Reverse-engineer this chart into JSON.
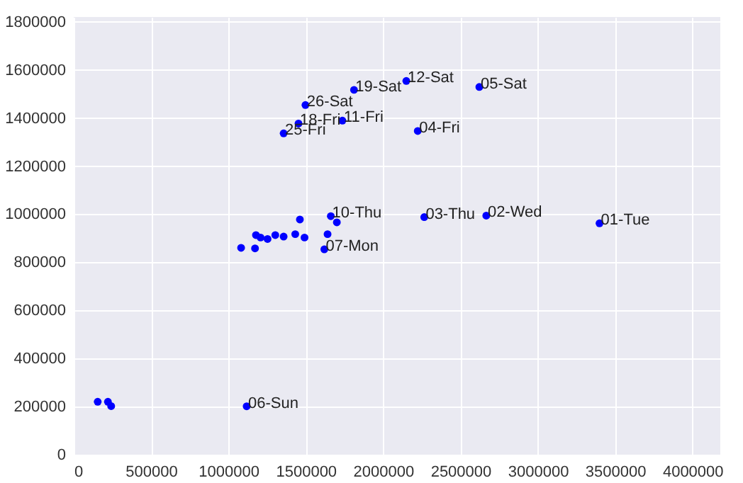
{
  "chart_data": {
    "type": "scatter",
    "marker": "circle",
    "grid": true,
    "xlim": [
      0,
      4180000
    ],
    "ylim": [
      0,
      1820000
    ],
    "xticks": [
      0,
      500000,
      1000000,
      1500000,
      2000000,
      2500000,
      3000000,
      3500000,
      4000000
    ],
    "yticks": [
      0,
      200000,
      400000,
      600000,
      800000,
      1000000,
      1200000,
      1400000,
      1600000,
      1800000
    ],
    "x": [
      3399000,
      2667000,
      2266000,
      2224000,
      2622000,
      1118000,
      1620000,
      1737000,
      2150000,
      1453000,
      1812000,
      1357000,
      1498000,
      155000,
      221000,
      242000,
      1462000,
      1662000,
      1701000,
      1641000,
      1082000,
      1172000,
      1178000,
      1208000,
      1253000,
      1303000,
      1357000,
      1432000,
      1492000
    ],
    "series": [
      {
        "color": "#0000ff",
        "values": [
          962000,
          994000,
          988000,
          1346000,
          1529000,
          201000,
          854000,
          1389000,
          1554000,
          1377000,
          1517000,
          1336000,
          1454000,
          220000,
          220000,
          202000,
          978000,
          992000,
          966000,
          917000,
          860000,
          858000,
          913000,
          903000,
          897000,
          913000,
          907000,
          917000,
          903000
        ]
      }
    ],
    "annotations": [
      {
        "text": "01-Tue",
        "x": 3399000,
        "y": 962000
      },
      {
        "text": "02-Wed",
        "x": 2667000,
        "y": 994000
      },
      {
        "text": "03-Thu",
        "x": 2266000,
        "y": 988000
      },
      {
        "text": "04-Fri",
        "x": 2224000,
        "y": 1346000
      },
      {
        "text": "05-Sat",
        "x": 2622000,
        "y": 1529000
      },
      {
        "text": "06-Sun",
        "x": 1118000,
        "y": 201000
      },
      {
        "text": "07-Mon",
        "x": 1620000,
        "y": 854000
      },
      {
        "text": "11-Fri",
        "x": 1737000,
        "y": 1389000
      },
      {
        "text": "12-Sat",
        "x": 2150000,
        "y": 1554000
      },
      {
        "text": "18-Fri",
        "x": 1453000,
        "y": 1377000
      },
      {
        "text": "19-Sat",
        "x": 1812000,
        "y": 1517000
      },
      {
        "text": "25-Fri",
        "x": 1357000,
        "y": 1336000
      },
      {
        "text": "26-Sat",
        "x": 1498000,
        "y": 1454000
      },
      {
        "text": "10-Thu",
        "x": 1662000,
        "y": 992000
      }
    ]
  }
}
